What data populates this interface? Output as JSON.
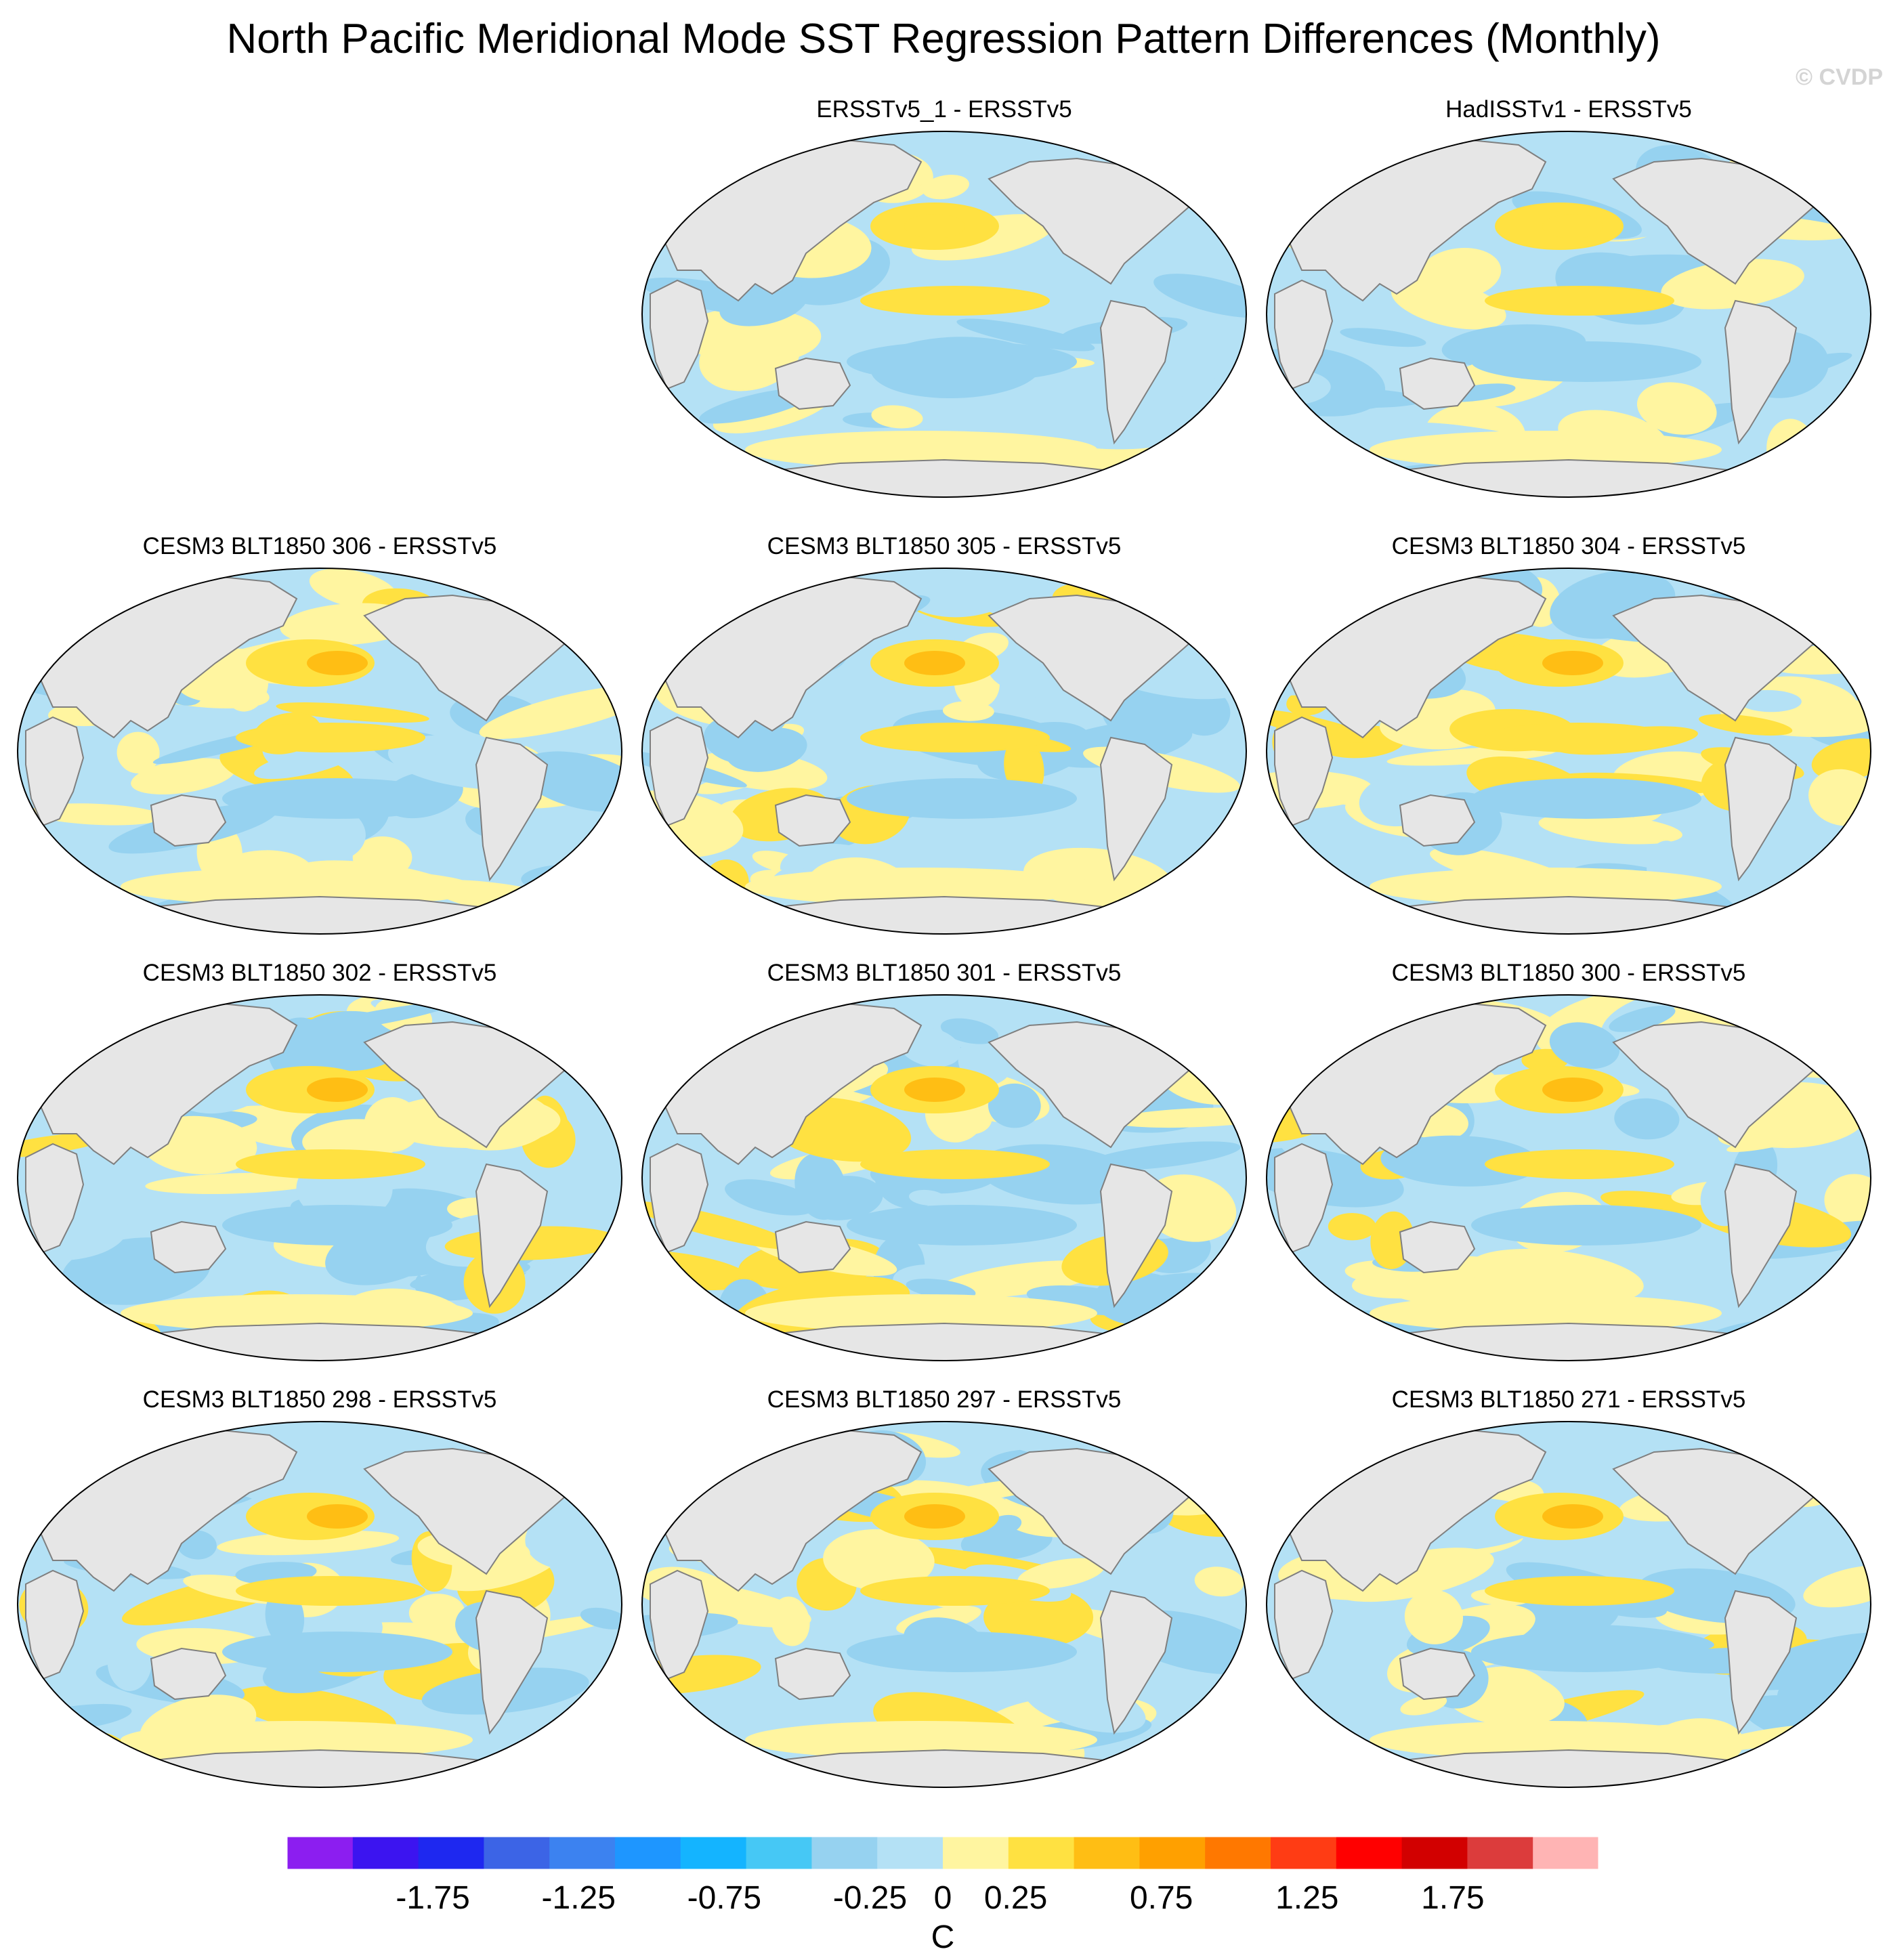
{
  "title": "North Pacific Meridional Mode SST Regression Pattern Differences (Monthly)",
  "watermark": "© CVDP",
  "chart_data": {
    "type": "heatmap",
    "projection": "Robinson, Pacific-centred global map",
    "variable": "SST regression pattern difference",
    "panels": [
      {
        "title": "ERSSTv5_1 - ERSSTv5",
        "pattern": "weak"
      },
      {
        "title": "HadISSTv1 - ERSSTv5",
        "pattern": "weak"
      },
      {
        "title": "CESM3 BLT1850 306 - ERSSTv5",
        "pattern": "moderate"
      },
      {
        "title": "CESM3 BLT1850 305 - ERSSTv5",
        "pattern": "moderate"
      },
      {
        "title": "CESM3 BLT1850 304 - ERSSTv5",
        "pattern": "moderate"
      },
      {
        "title": "CESM3 BLT1850 302 - ERSSTv5",
        "pattern": "moderate"
      },
      {
        "title": "CESM3 BLT1850 301 - ERSSTv5",
        "pattern": "moderate"
      },
      {
        "title": "CESM3 BLT1850 300 - ERSSTv5",
        "pattern": "moderate"
      },
      {
        "title": "CESM3 BLT1850 298 - ERSSTv5",
        "pattern": "moderate"
      },
      {
        "title": "CESM3 BLT1850 297 - ERSSTv5",
        "pattern": "moderate"
      },
      {
        "title": "CESM3 BLT1850 271 - ERSSTv5",
        "pattern": "moderate"
      }
    ],
    "colorbar": {
      "label": "C",
      "range": [
        -2.25,
        2.25
      ],
      "bin_width": 0.25,
      "tick_labels": [
        "-1.75",
        "-1.25",
        "-0.75",
        "-0.25",
        "0",
        "0.25",
        "0.75",
        "1.25",
        "1.75"
      ],
      "tick_values": [
        -1.75,
        -1.25,
        -0.75,
        -0.25,
        0,
        0.25,
        0.75,
        1.25,
        1.75
      ],
      "colors": [
        "#8c1ef0",
        "#3c14f0",
        "#1e28f0",
        "#3c64e6",
        "#3c82f0",
        "#1e96ff",
        "#14b4ff",
        "#46c8f5",
        "#96d2f0",
        "#b4e1f5",
        "#fff5a0",
        "#ffe141",
        "#ffbe14",
        "#ffa000",
        "#ff7800",
        "#ff3c14",
        "#ff0000",
        "#d20000",
        "#dc3c3c",
        "#ffb4b4"
      ]
    }
  },
  "colors": {
    "land": "#e6e6e6",
    "coast": "#7f7f7f",
    "neutral_negative": "#b4e1f5",
    "moderate_negative": "#96d2f0",
    "strong_negative": "#46c8f5",
    "neutral_positive": "#fff5a0",
    "moderate_positive": "#ffe141",
    "strong_positive": "#ffbe14"
  }
}
